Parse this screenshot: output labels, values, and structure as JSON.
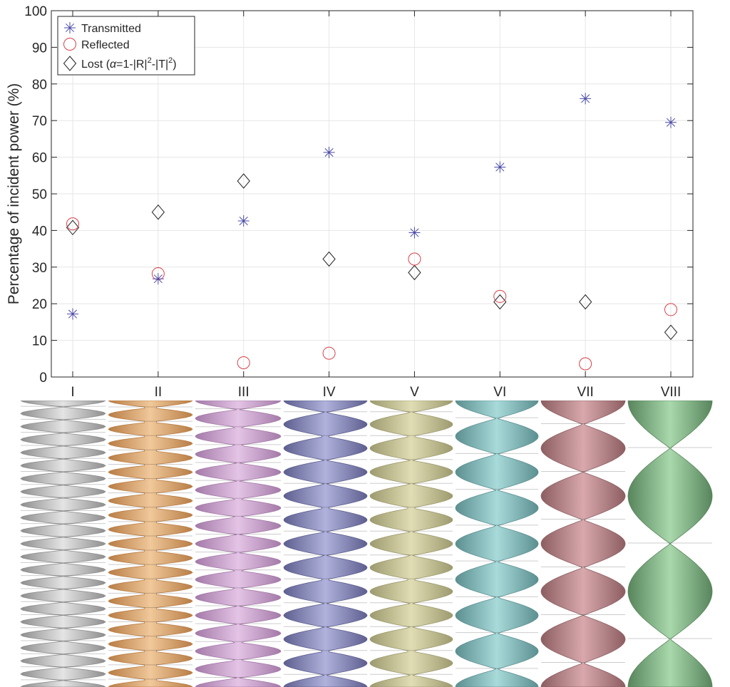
{
  "chart_data": {
    "type": "scatter",
    "title": "",
    "xlabel": "",
    "ylabel": "Percentage of incident power (%)",
    "categories": [
      "I",
      "II",
      "III",
      "IV",
      "V",
      "VI",
      "VII",
      "VIII"
    ],
    "ylim": [
      0,
      100
    ],
    "yticks": [
      "0",
      "10",
      "20",
      "30",
      "40",
      "50",
      "60",
      "70",
      "80",
      "90",
      "100"
    ],
    "grid": true,
    "legend_position": "top-left",
    "series": [
      {
        "name": "Transmitted",
        "marker": "asterisk",
        "color": "#4a4aa8",
        "values": [
          17.2,
          26.8,
          42.6,
          61.3,
          39.4,
          57.3,
          76.0,
          69.5
        ]
      },
      {
        "name": "Reflected",
        "marker": "circle",
        "color": "#d9414a",
        "values": [
          41.8,
          28.2,
          3.9,
          6.5,
          32.2,
          22.0,
          3.6,
          18.4
        ]
      },
      {
        "name": "Lost",
        "marker": "diamond",
        "color": "#222222",
        "values": [
          40.8,
          45.0,
          53.5,
          32.2,
          28.5,
          20.5,
          20.5,
          12.2
        ]
      }
    ],
    "legend_lost": {
      "prefix": "Lost (",
      "alpha": "α",
      "mid": "=1-|R|",
      "sup": "2",
      "mid2": "-|T|",
      "close": ")"
    }
  },
  "structures": {
    "labels": [
      "I",
      "II",
      "III",
      "IV",
      "V",
      "VI",
      "VII",
      "VIII"
    ],
    "colors": [
      "#8e8e8e",
      "#b87d45",
      "#a47aa8",
      "#5e5f8f",
      "#9d9a6f",
      "#5c8f90",
      "#8c5e62",
      "#58855c"
    ],
    "highlight_colors": [
      "#e4e4e4",
      "#f0c89a",
      "#e4c4e6",
      "#b0b2dc",
      "#e0ddb4",
      "#a8dada",
      "#d8a8ac",
      "#a8d8ac"
    ],
    "twist_counts": [
      22,
      20,
      16,
      12,
      12,
      8,
      6,
      3
    ]
  }
}
